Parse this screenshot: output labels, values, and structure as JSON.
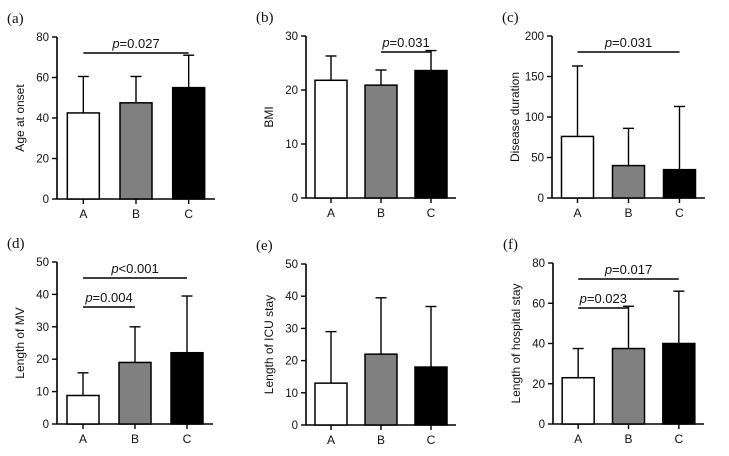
{
  "chart_data": [
    {
      "panel": "(a)",
      "type": "bar",
      "categories": [
        "A",
        "B",
        "C"
      ],
      "values": [
        42.5,
        47.5,
        55
      ],
      "errors": [
        18,
        13,
        16
      ],
      "fills": [
        "#ffffff",
        "#808080",
        "#000000"
      ],
      "ylabel": "Age at onset",
      "ylim": [
        0,
        80
      ],
      "yticks": [
        "0",
        "20",
        "40",
        "60",
        "80"
      ],
      "significance": [
        {
          "from": 0,
          "to": 2,
          "p_prefix": "p",
          "p_rest": "=0.027"
        }
      ]
    },
    {
      "panel": "(b)",
      "type": "bar",
      "categories": [
        "A",
        "B",
        "C"
      ],
      "values": [
        21.8,
        20.9,
        23.6
      ],
      "errors": [
        4.5,
        2.8,
        3.7
      ],
      "fills": [
        "#ffffff",
        "#808080",
        "#000000"
      ],
      "ylabel": "BMI",
      "ylim": [
        0,
        30
      ],
      "yticks": [
        "0",
        "10",
        "20",
        "30"
      ],
      "significance": [
        {
          "from": 1,
          "to": 2,
          "p_prefix": "p",
          "p_rest": "=0.031"
        }
      ]
    },
    {
      "panel": "(c)",
      "type": "bar",
      "categories": [
        "A",
        "B",
        "C"
      ],
      "values": [
        76,
        40,
        35
      ],
      "errors": [
        87,
        46,
        78
      ],
      "fills": [
        "#ffffff",
        "#808080",
        "#000000"
      ],
      "ylabel": "Disease duration",
      "ylim": [
        0,
        200
      ],
      "yticks": [
        "0",
        "50",
        "100",
        "150",
        "200"
      ],
      "significance": [
        {
          "from": 0,
          "to": 2,
          "p_prefix": "p",
          "p_rest": "=0.031"
        }
      ]
    },
    {
      "panel": "(d)",
      "type": "bar",
      "categories": [
        "A",
        "B",
        "C"
      ],
      "values": [
        8.8,
        19,
        22
      ],
      "errors": [
        7,
        11,
        17.5
      ],
      "fills": [
        "#ffffff",
        "#808080",
        "#000000"
      ],
      "ylabel": "Length of MV",
      "ylim": [
        0,
        50
      ],
      "yticks": [
        "0",
        "10",
        "20",
        "30",
        "40",
        "50"
      ],
      "significance": [
        {
          "from": 0,
          "to": 1,
          "p_prefix": "p",
          "p_rest": "=0.004"
        },
        {
          "from": 0,
          "to": 2,
          "p_prefix": "p",
          "p_rest": "<0.001"
        }
      ]
    },
    {
      "panel": "(e)",
      "type": "bar",
      "categories": [
        "A",
        "B",
        "C"
      ],
      "values": [
        13,
        22,
        18
      ],
      "errors": [
        16,
        17.5,
        18.8
      ],
      "fills": [
        "#ffffff",
        "#808080",
        "#000000"
      ],
      "ylabel": "Length of ICU stay",
      "ylim": [
        0,
        50
      ],
      "yticks": [
        "0",
        "10",
        "20",
        "30",
        "40",
        "50"
      ],
      "significance": []
    },
    {
      "panel": "(f)",
      "type": "bar",
      "categories": [
        "A",
        "B",
        "C"
      ],
      "values": [
        23,
        37.5,
        40
      ],
      "errors": [
        14.5,
        21,
        26
      ],
      "fills": [
        "#ffffff",
        "#808080",
        "#000000"
      ],
      "ylabel": "Length of hospital stay",
      "ylim": [
        0,
        80
      ],
      "yticks": [
        "0",
        "20",
        "40",
        "60",
        "80"
      ],
      "significance": [
        {
          "from": 0,
          "to": 1,
          "p_prefix": "p",
          "p_rest": "=0.023"
        },
        {
          "from": 0,
          "to": 2,
          "p_prefix": "p",
          "p_rest": "=0.017"
        }
      ]
    }
  ]
}
